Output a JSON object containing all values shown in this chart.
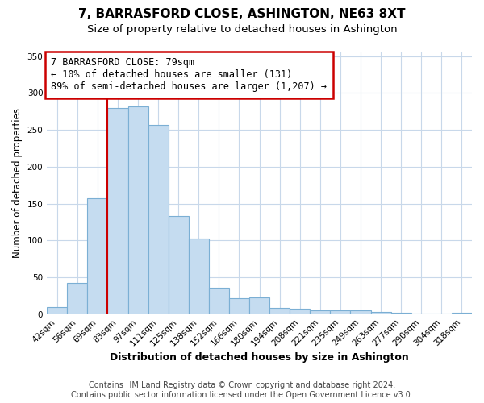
{
  "title": "7, BARRASFORD CLOSE, ASHINGTON, NE63 8XT",
  "subtitle": "Size of property relative to detached houses in Ashington",
  "xlabel": "Distribution of detached houses by size in Ashington",
  "ylabel": "Number of detached properties",
  "bar_labels": [
    "42sqm",
    "56sqm",
    "69sqm",
    "83sqm",
    "97sqm",
    "111sqm",
    "125sqm",
    "138sqm",
    "152sqm",
    "166sqm",
    "180sqm",
    "194sqm",
    "208sqm",
    "221sqm",
    "235sqm",
    "249sqm",
    "263sqm",
    "277sqm",
    "290sqm",
    "304sqm",
    "318sqm"
  ],
  "bar_values": [
    10,
    42,
    157,
    280,
    282,
    257,
    133,
    103,
    36,
    22,
    23,
    8,
    7,
    5,
    5,
    5,
    3,
    2,
    1,
    1,
    2
  ],
  "bar_color": "#C5DCF0",
  "bar_edge_color": "#7BAFD4",
  "vline_x_idx": 3,
  "vline_color": "#CC0000",
  "annotation_line1": "7 BARRASFORD CLOSE: 79sqm",
  "annotation_line2": "← 10% of detached houses are smaller (131)",
  "annotation_line3": "89% of semi-detached houses are larger (1,207) →",
  "ylim": [
    0,
    355
  ],
  "yticks": [
    0,
    50,
    100,
    150,
    200,
    250,
    300,
    350
  ],
  "footer_line1": "Contains HM Land Registry data © Crown copyright and database right 2024.",
  "footer_line2": "Contains public sector information licensed under the Open Government Licence v3.0.",
  "background_color": "#FFFFFF",
  "grid_color": "#C8D8EA",
  "title_fontsize": 11,
  "subtitle_fontsize": 9.5,
  "xlabel_fontsize": 9,
  "ylabel_fontsize": 8.5,
  "tick_fontsize": 7.5,
  "annotation_fontsize": 8.5,
  "footer_fontsize": 7
}
